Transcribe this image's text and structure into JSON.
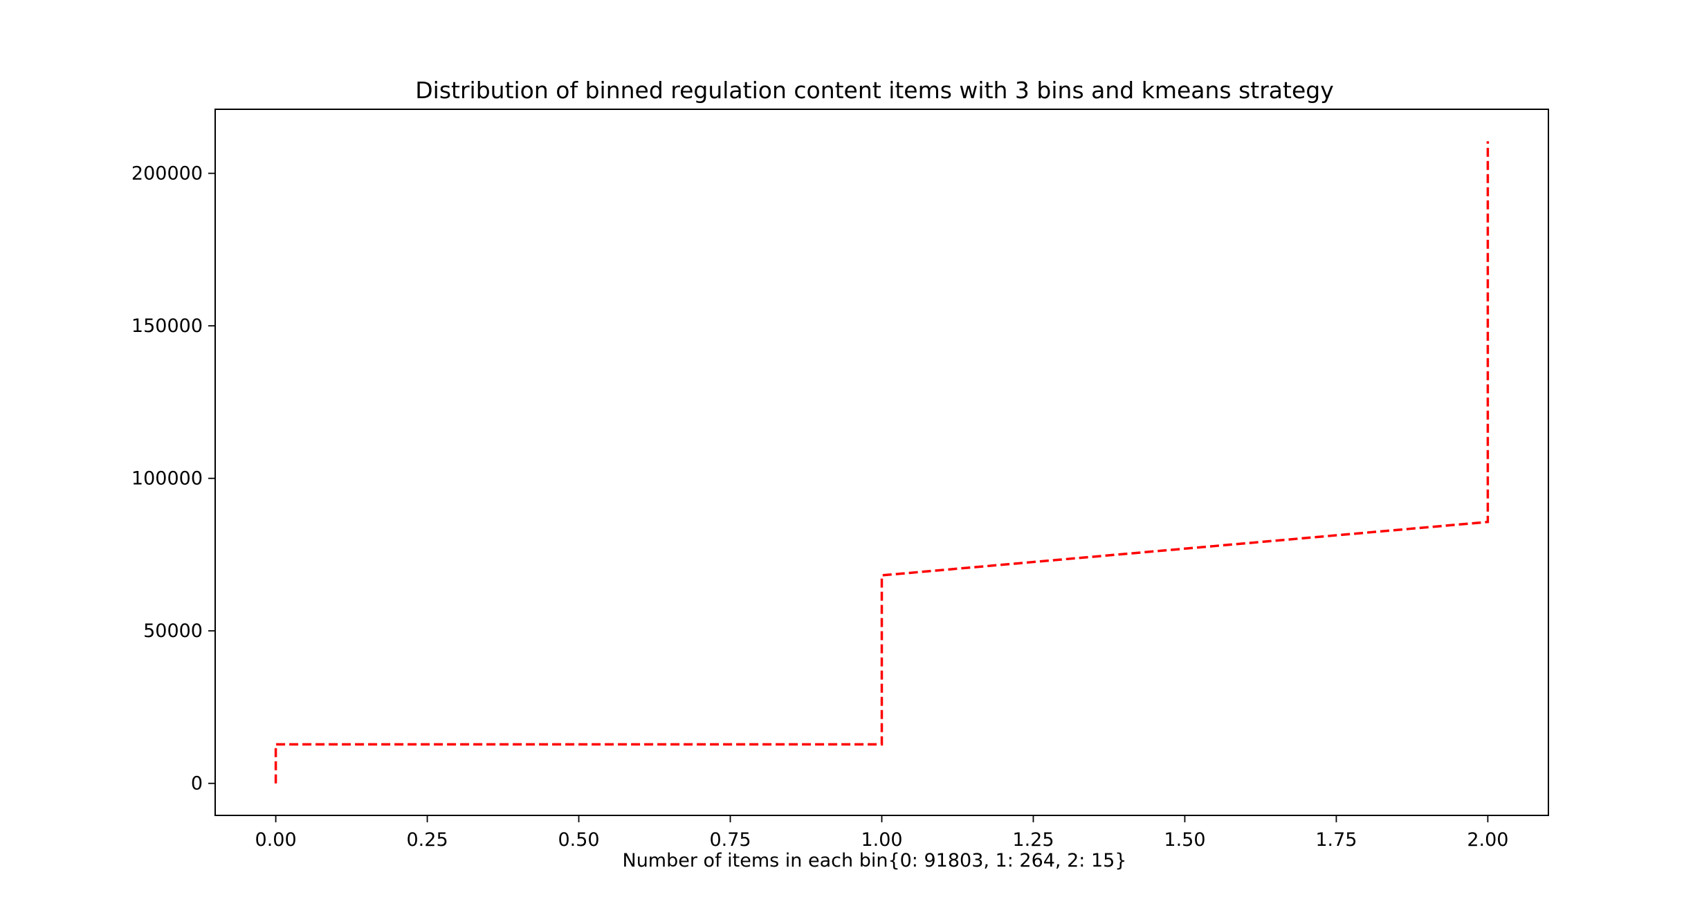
{
  "chart_data": {
    "type": "line",
    "title": "Distribution of binned regulation content items with 3 bins and kmeans strategy",
    "xlabel": "Number of items in each bin{0: 91803, 1: 264, 2: 15}",
    "ylabel": "",
    "xlim": [
      -0.1,
      2.1
    ],
    "ylim": [
      -10500,
      221000
    ],
    "x_ticks": [
      0.0,
      0.25,
      0.5,
      0.75,
      1.0,
      1.25,
      1.5,
      1.75,
      2.0
    ],
    "x_tick_labels": [
      "0.00",
      "0.25",
      "0.50",
      "0.75",
      "1.00",
      "1.25",
      "1.50",
      "1.75",
      "2.00"
    ],
    "y_ticks": [
      0,
      50000,
      100000,
      150000,
      200000
    ],
    "y_tick_labels": [
      "0",
      "50000",
      "100000",
      "150000",
      "200000"
    ],
    "grid": false,
    "series": [
      {
        "color": "#ff0000",
        "line_style": "dashed",
        "x": [
          0,
          0,
          1,
          1,
          2,
          2
        ],
        "y": [
          0,
          12800,
          12800,
          68200,
          85700,
          210500
        ]
      }
    ]
  }
}
